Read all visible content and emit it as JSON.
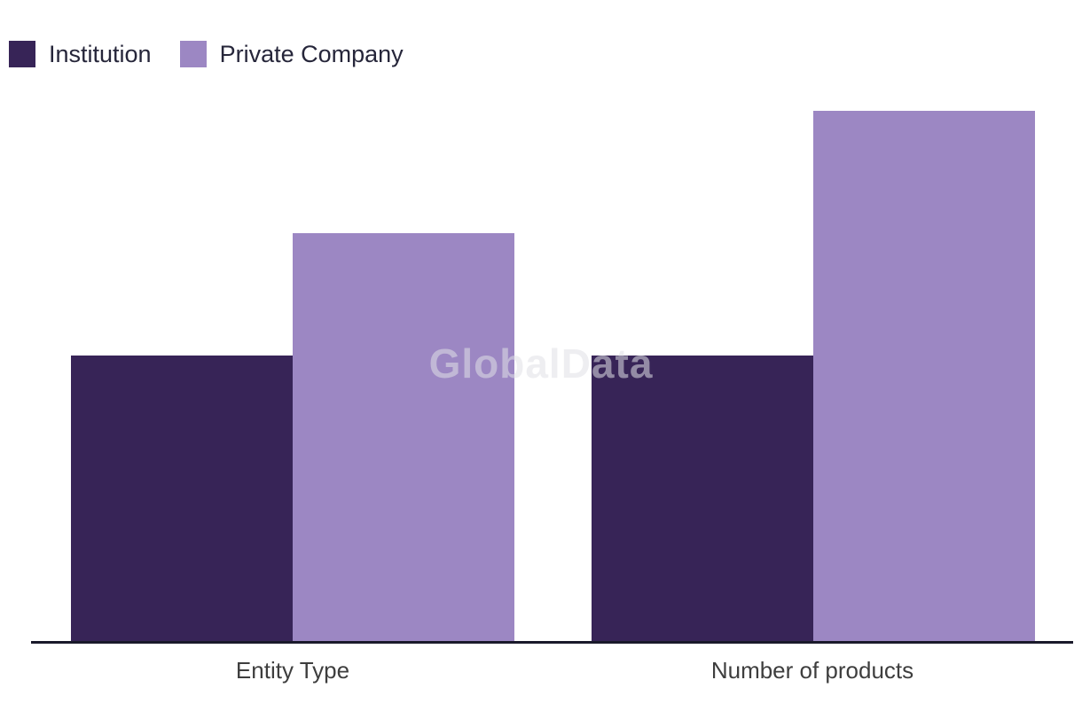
{
  "watermark": "GlobalData",
  "legend": {
    "items": [
      {
        "label": "Institution",
        "color": "#372457"
      },
      {
        "label": "Private Company",
        "color": "#9C87C3"
      }
    ]
  },
  "chart_data": {
    "type": "bar",
    "categories": [
      "Entity Type",
      "Number of products"
    ],
    "series": [
      {
        "name": "Institution",
        "color": "#372457",
        "values": [
          7,
          7
        ]
      },
      {
        "name": "Private Company",
        "color": "#9C87C3",
        "values": [
          10,
          13
        ]
      }
    ],
    "title": "",
    "xlabel": "",
    "ylabel": "",
    "ylim": [
      0,
      13.5
    ],
    "grid": false,
    "legend_position": "top-left",
    "value_units": "relative (no y-axis or value labels shown; values estimated from bar heights)"
  },
  "colors": {
    "background": "#FFFFFF",
    "axis_line": "#1A1A2B",
    "category_label": "#3E3E3E",
    "legend_label": "#26263A",
    "watermark": "#E0E0E6",
    "series_dark": "#372457",
    "series_light": "#9C87C3"
  }
}
